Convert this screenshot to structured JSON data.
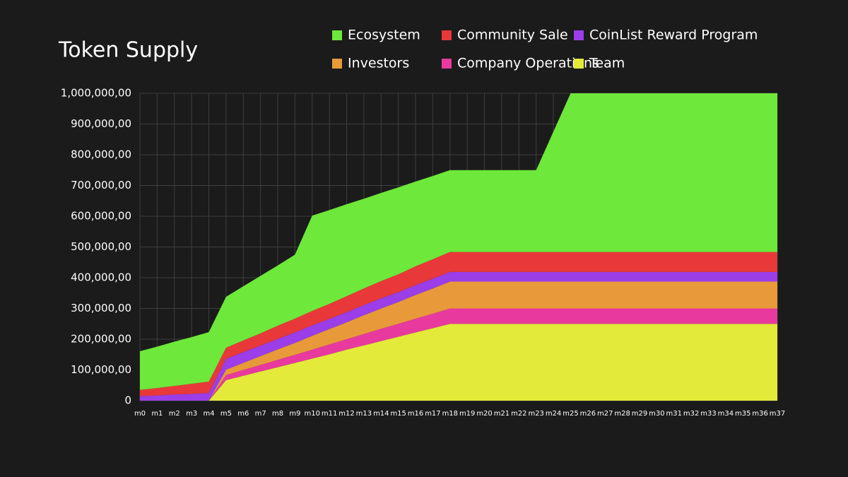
{
  "chart_data": {
    "type": "stacked_area",
    "title": "Token Supply",
    "categories": [
      "m0",
      "m1",
      "m2",
      "m3",
      "m4",
      "m5",
      "m6",
      "m7",
      "m8",
      "m9",
      "m10",
      "m11",
      "m12",
      "m13",
      "m14",
      "m15",
      "m16",
      "m17",
      "m18",
      "m19",
      "m20",
      "m21",
      "m22",
      "m23",
      "m24",
      "m25",
      "m26",
      "m27",
      "m28",
      "m29",
      "m30",
      "m31",
      "m32",
      "m33",
      "m34",
      "m35",
      "m36",
      "m37"
    ],
    "series": [
      {
        "name": "Team",
        "color": "#e4ea3a",
        "values": [
          0,
          0,
          0,
          0,
          0,
          67000,
          81000,
          95000,
          109000,
          123000,
          137000,
          151000,
          166000,
          180000,
          194000,
          208000,
          222000,
          236000,
          250000,
          250000,
          250000,
          250000,
          250000,
          250000,
          250000,
          250000,
          250000,
          250000,
          250000,
          250000,
          250000,
          250000,
          250000,
          250000,
          250000,
          250000,
          250000,
          250000
        ]
      },
      {
        "name": "Company Operations",
        "color": "#e83a9e",
        "values": [
          0,
          0,
          0,
          0,
          0,
          16000,
          19000,
          21000,
          24000,
          26000,
          29000,
          32000,
          34000,
          37000,
          40000,
          42000,
          45000,
          47000,
          50000,
          50000,
          50000,
          50000,
          50000,
          50000,
          50000,
          50000,
          50000,
          50000,
          50000,
          50000,
          50000,
          50000,
          50000,
          50000,
          50000,
          50000,
          50000,
          50000
        ]
      },
      {
        "name": "Investors",
        "color": "#e89a3a",
        "values": [
          0,
          0,
          0,
          0,
          0,
          18000,
          23000,
          29000,
          34000,
          39000,
          45000,
          50000,
          55000,
          61000,
          66000,
          71000,
          77000,
          82000,
          87500,
          87500,
          87500,
          87500,
          87500,
          87500,
          87500,
          87500,
          87500,
          87500,
          87500,
          87500,
          87500,
          87500,
          87500,
          87500,
          87500,
          87500,
          87500,
          87500
        ]
      },
      {
        "name": "CoinList Reward Program",
        "color": "#9b3ee8",
        "values": [
          15000,
          17000,
          20000,
          22000,
          25000,
          35000,
          35000,
          34000,
          34000,
          34000,
          34000,
          33000,
          33000,
          33000,
          33000,
          32000,
          32000,
          32000,
          31250,
          31250,
          31250,
          31250,
          31250,
          31250,
          31250,
          31250,
          31250,
          31250,
          31250,
          31250,
          31250,
          31250,
          31250,
          31250,
          31250,
          31250,
          31250,
          31250
        ]
      },
      {
        "name": "Community Sale",
        "color": "#e8383a",
        "values": [
          20000,
          24000,
          28000,
          33000,
          37000,
          36000,
          38000,
          40000,
          43000,
          45000,
          47000,
          49000,
          52000,
          54000,
          56000,
          58000,
          61000,
          63000,
          65000,
          65000,
          65000,
          65000,
          65000,
          65000,
          65000,
          65000,
          65000,
          65000,
          65000,
          65000,
          65000,
          65000,
          65000,
          65000,
          65000,
          65000,
          65000,
          65000
        ]
      },
      {
        "name": "Ecosystem",
        "color": "#6ee83a",
        "values": [
          126000,
          135000,
          144000,
          152000,
          161000,
          166000,
          176000,
          187000,
          196000,
          208000,
          310000,
          305000,
          299000,
          292000,
          287000,
          283000,
          276000,
          271000,
          266250,
          266250,
          266250,
          266250,
          266250,
          266250,
          391250,
          516250,
          516250,
          516250,
          516250,
          516250,
          516250,
          516250,
          516250,
          516250,
          516250,
          516250,
          516250,
          516250
        ]
      }
    ],
    "ylim": [
      0,
      1000000
    ],
    "yticks": [
      0,
      {
        "value": 100000,
        "label": "100,000,00"
      },
      {
        "value": 200000,
        "label": "200,000,00"
      },
      {
        "value": 300000,
        "label": "300,000,00"
      },
      {
        "value": 400000,
        "label": "400,000,00"
      },
      {
        "value": 500000,
        "label": "500,000,00"
      },
      {
        "value": 600000,
        "label": "600,000,00"
      },
      {
        "value": 700000,
        "label": "700,000,00"
      },
      {
        "value": 800000,
        "label": "800,000,00"
      },
      {
        "value": 900000,
        "label": "900,000,00"
      },
      {
        "value": 1000000,
        "label": "1,000,000,00"
      }
    ],
    "grid": true
  }
}
